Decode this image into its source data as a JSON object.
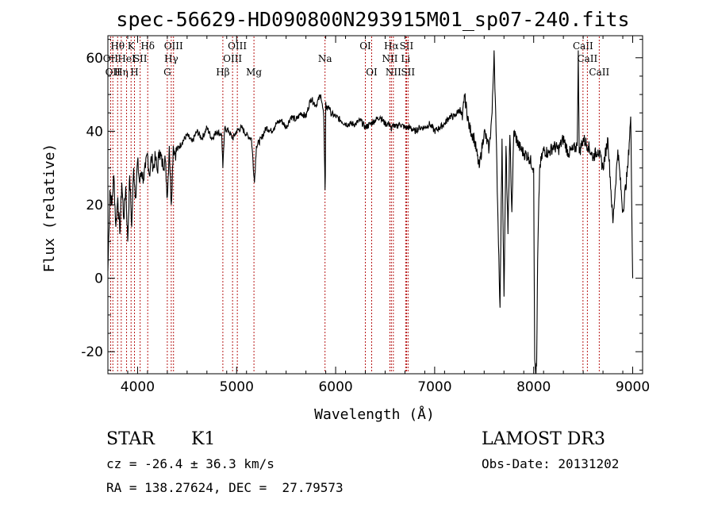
{
  "chart_data": {
    "type": "line",
    "title": "spec-56629-HD090800N293915M01_sp07-240.fits",
    "xlabel": "Wavelength (Å)",
    "ylabel": "Flux (relative)",
    "xlim": [
      3700,
      9100
    ],
    "ylim": [
      -26,
      66
    ],
    "x_ticks": [
      4000,
      5000,
      6000,
      7000,
      8000,
      9000
    ],
    "y_ticks": [
      -20,
      0,
      20,
      40,
      60
    ],
    "grid": false,
    "series": [
      {
        "x": [
          3700,
          3720,
          3740,
          3760,
          3780,
          3800,
          3820,
          3840,
          3860,
          3880,
          3900,
          3920,
          3940,
          3960,
          3980,
          4000,
          4020,
          4040,
          4060,
          4080,
          4100,
          4120,
          4140,
          4160,
          4180,
          4200,
          4220,
          4250,
          4280,
          4300,
          4320,
          4340,
          4360,
          4380,
          4400,
          4450,
          4500,
          4550,
          4600,
          4650,
          4700,
          4750,
          4800,
          4850,
          4861,
          4880,
          4920,
          4960,
          5000,
          5050,
          5100,
          5150,
          5180,
          5200,
          5250,
          5300,
          5350,
          5400,
          5450,
          5500,
          5550,
          5600,
          5650,
          5700,
          5750,
          5800,
          5850,
          5880,
          5890,
          5893,
          5896,
          5900,
          5910,
          5930,
          5950,
          6000,
          6050,
          6100,
          6150,
          6200,
          6250,
          6300,
          6350,
          6400,
          6450,
          6500,
          6550,
          6563,
          6580,
          6600,
          6650,
          6700,
          6750,
          6800,
          6850,
          6900,
          6950,
          7000,
          7050,
          7100,
          7150,
          7200,
          7250,
          7280,
          7300,
          7350,
          7400,
          7450,
          7500,
          7550,
          7580,
          7600,
          7620,
          7640,
          7660,
          7680,
          7700,
          7720,
          7740,
          7760,
          7780,
          7800,
          7850,
          7900,
          7950,
          8000,
          8010,
          8020,
          8030,
          8040,
          8060,
          8100,
          8150,
          8200,
          8250,
          8300,
          8350,
          8400,
          8440,
          8450,
          8460,
          8500,
          8550,
          8600,
          8650,
          8700,
          8750,
          8800,
          8850,
          8900,
          8950,
          8980,
          9000
        ],
        "values": [
          2,
          24,
          20,
          28,
          14,
          22,
          12,
          26,
          16,
          25,
          10,
          28,
          14,
          30,
          22,
          32,
          26,
          29,
          27,
          30,
          34,
          28,
          33,
          30,
          33,
          29,
          35,
          31,
          32,
          22,
          36,
          20,
          36,
          34,
          35,
          37,
          39,
          37,
          40,
          38,
          41,
          38,
          40,
          39,
          30,
          41,
          40,
          38,
          40,
          41,
          39,
          38,
          26,
          36,
          38,
          41,
          40,
          42,
          43,
          41,
          44,
          43,
          45,
          44,
          49,
          47,
          50,
          44,
          30,
          24,
          28,
          48,
          46,
          47,
          45,
          44,
          43,
          42,
          42,
          42,
          43,
          41,
          42,
          43,
          44,
          42,
          42,
          40,
          42,
          41,
          42,
          41,
          41,
          40,
          41,
          41,
          42,
          40,
          41,
          42,
          44,
          44,
          46,
          43,
          50,
          41,
          38,
          30,
          40,
          35,
          45,
          62,
          40,
          15,
          -8,
          38,
          -5,
          36,
          12,
          39,
          18,
          40,
          36,
          34,
          33,
          30,
          -22,
          -26,
          -24,
          5,
          30,
          35,
          34,
          36,
          35,
          38,
          34,
          35,
          36,
          62,
          34,
          38,
          36,
          33,
          35,
          30,
          38,
          15,
          35,
          18,
          30,
          44,
          0
        ]
      }
    ],
    "line_markers": [
      {
        "wavelength": 3727,
        "label": "OII",
        "row": 2
      },
      {
        "wavelength": 3750,
        "label": "OII",
        "row": 3
      },
      {
        "wavelength": 3798,
        "label": "Hθ",
        "row": 1
      },
      {
        "wavelength": 3835,
        "label": "Hη",
        "row": 3
      },
      {
        "wavelength": 3889,
        "label": "HeI",
        "row": 2
      },
      {
        "wavelength": 3934,
        "label": "K",
        "row": 1
      },
      {
        "wavelength": 3968,
        "label": "H",
        "row": 3
      },
      {
        "wavelength": 4026,
        "label": "SII",
        "row": 2
      },
      {
        "wavelength": 4102,
        "label": "Hδ",
        "row": 1
      },
      {
        "wavelength": 4300,
        "label": "G",
        "row": 3
      },
      {
        "wavelength": 4340,
        "label": "Hγ",
        "row": 2
      },
      {
        "wavelength": 4363,
        "label": "OIII",
        "row": 1
      },
      {
        "wavelength": 4861,
        "label": "Hβ",
        "row": 3
      },
      {
        "wavelength": 4959,
        "label": "OIII",
        "row": 2
      },
      {
        "wavelength": 5007,
        "label": "OIII",
        "row": 1
      },
      {
        "wavelength": 5175,
        "label": "Mg",
        "row": 3
      },
      {
        "wavelength": 5893,
        "label": "Na",
        "row": 2
      },
      {
        "wavelength": 6300,
        "label": "OI",
        "row": 1
      },
      {
        "wavelength": 6364,
        "label": "OI",
        "row": 3
      },
      {
        "wavelength": 6548,
        "label": "NII",
        "row": 2
      },
      {
        "wavelength": 6563,
        "label": "Hα",
        "row": 1
      },
      {
        "wavelength": 6583,
        "label": "NII",
        "row": 3
      },
      {
        "wavelength": 6707,
        "label": "Li",
        "row": 2
      },
      {
        "wavelength": 6716,
        "label": "SII",
        "row": 1
      },
      {
        "wavelength": 6731,
        "label": "SII",
        "row": 3
      },
      {
        "wavelength": 8498,
        "label": "CaII",
        "row": 1
      },
      {
        "wavelength": 8542,
        "label": "CaII",
        "row": 2
      },
      {
        "wavelength": 8662,
        "label": "CaII",
        "row": 3
      }
    ]
  },
  "info": {
    "object_class": "STAR",
    "subclass": "K1",
    "survey": "LAMOST DR3",
    "cz": "cz = -26.4 ± 36.3 km/s",
    "obs_date": "Obs-Date: 20131202",
    "coords": "RA = 138.27624, DEC =  27.79573"
  }
}
